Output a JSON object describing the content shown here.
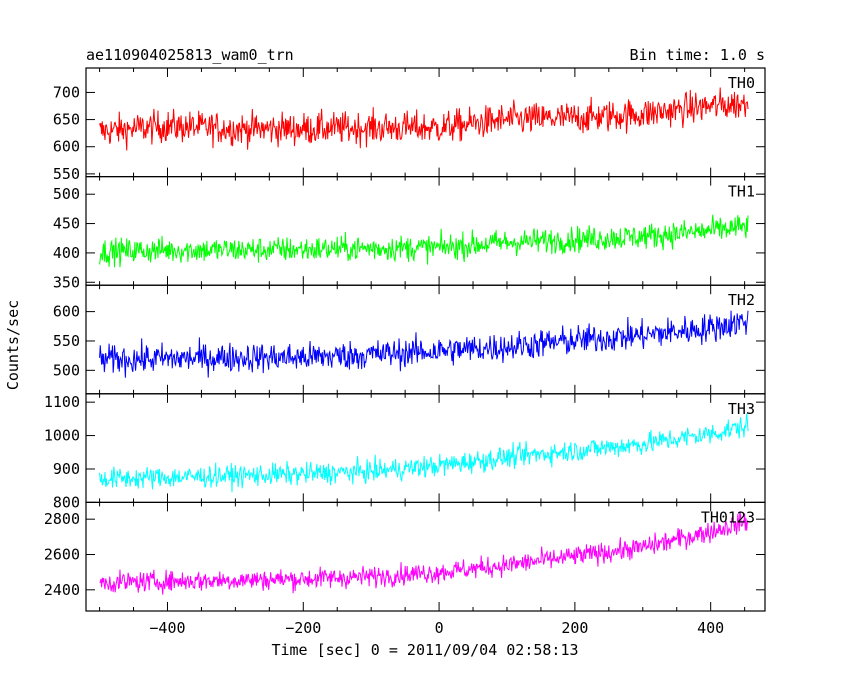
{
  "header": {
    "title": "ae110904025813_wam0_trn",
    "bin_time": "Bin time: 1.0 s"
  },
  "chart_data": {
    "type": "line",
    "title": "ae110904025813_wam0_trn",
    "subtitle": "Bin time: 1.0 s",
    "xlabel": "Time [sec] 0 = 2011/09/04 02:58:13",
    "ylabel": "Counts/sec",
    "xlim": [
      -520,
      480
    ],
    "x_ticks": [
      -400,
      -200,
      0,
      200,
      400
    ],
    "x_tick_labels": [
      "−400",
      "−200",
      "0",
      "200",
      "400"
    ],
    "grid": false,
    "legend": "none",
    "panels": [
      {
        "name": "TH0",
        "color": "#ff0000",
        "ylim": [
          545,
          745
        ],
        "y_ticks": [
          550,
          600,
          650,
          700
        ],
        "y_tick_labels": [
          "550",
          "600",
          "650",
          "700"
        ],
        "x": [
          -500,
          -400,
          -300,
          -200,
          -100,
          0,
          100,
          200,
          300,
          400,
          455
        ],
        "values": [
          628,
          638,
          633,
          633,
          635,
          635,
          650,
          653,
          660,
          675,
          680
        ],
        "noise": 38
      },
      {
        "name": "TH1",
        "color": "#00ff00",
        "ylim": [
          345,
          530
        ],
        "y_ticks": [
          350,
          400,
          450,
          500
        ],
        "y_tick_labels": [
          "350",
          "400",
          "450",
          "500"
        ],
        "x": [
          -500,
          -400,
          -300,
          -200,
          -100,
          0,
          100,
          200,
          300,
          400,
          455
        ],
        "values": [
          402,
          405,
          405,
          406,
          408,
          409,
          418,
          423,
          428,
          438,
          445
        ],
        "noise": 28
      },
      {
        "name": "TH2",
        "color": "#0000ff",
        "ylim": [
          460,
          645
        ],
        "y_ticks": [
          500,
          550,
          600
        ],
        "y_tick_labels": [
          "500",
          "550",
          "600"
        ],
        "x": [
          -500,
          -400,
          -300,
          -200,
          -100,
          0,
          100,
          200,
          300,
          400,
          455
        ],
        "values": [
          518,
          520,
          522,
          522,
          527,
          533,
          540,
          551,
          560,
          572,
          585
        ],
        "noise": 32
      },
      {
        "name": "TH3",
        "color": "#00ffff",
        "ylim": [
          800,
          1125
        ],
        "y_ticks": [
          800,
          900,
          1000,
          1100
        ],
        "y_tick_labels": [
          "800",
          "900",
          "1000",
          "1100"
        ],
        "x": [
          -500,
          -400,
          -300,
          -200,
          -100,
          0,
          100,
          200,
          300,
          400,
          455
        ],
        "values": [
          870,
          875,
          880,
          885,
          893,
          910,
          935,
          955,
          975,
          1005,
          1030
        ],
        "noise": 42
      },
      {
        "name": "TH0123",
        "color": "#ff00ff",
        "ylim": [
          2280,
          2895
        ],
        "y_ticks": [
          2400,
          2600,
          2800
        ],
        "y_tick_labels": [
          "2400",
          "2600",
          "2800"
        ],
        "x": [
          -500,
          -400,
          -300,
          -200,
          -100,
          0,
          100,
          200,
          300,
          400,
          455
        ],
        "values": [
          2440,
          2448,
          2455,
          2462,
          2475,
          2500,
          2540,
          2590,
          2640,
          2730,
          2790
        ],
        "noise": 75
      }
    ]
  }
}
